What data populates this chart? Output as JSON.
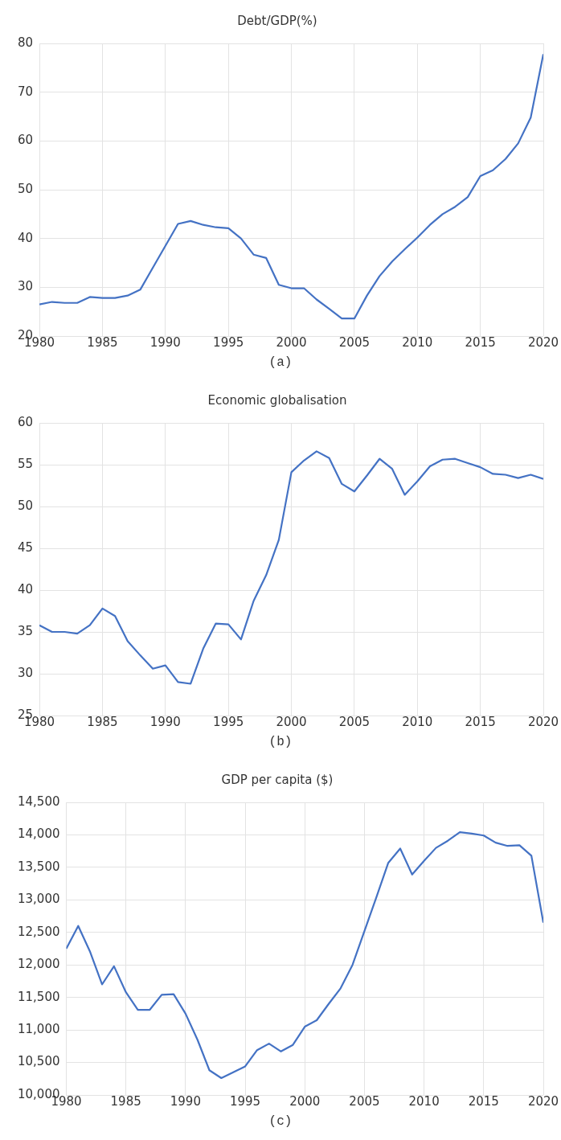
{
  "chart_data": [
    {
      "type": "line",
      "title": "Debt/GDP(%)",
      "annotations": [
        "(a)"
      ],
      "x": [
        1980,
        1981,
        1982,
        1983,
        1984,
        1985,
        1986,
        1987,
        1988,
        1989,
        1990,
        1991,
        1992,
        1993,
        1994,
        1995,
        1996,
        1997,
        1998,
        1999,
        2000,
        2001,
        2002,
        2003,
        2004,
        2005,
        2006,
        2007,
        2008,
        2009,
        2010,
        2011,
        2012,
        2013,
        2014,
        2015,
        2016,
        2017,
        2018,
        2019,
        2020
      ],
      "series": [
        {
          "color": "#4472c4",
          "values": [
            26.5,
            27,
            26.8,
            26.8,
            28,
            27.8,
            27.8,
            28.3,
            29.5,
            34,
            38.5,
            43,
            43.6,
            42.8,
            42.3,
            42.1,
            40,
            36.7,
            36,
            30.5,
            29.8,
            29.8,
            27.5,
            25.6,
            23.6,
            23.6,
            28.3,
            32.3,
            35.3,
            37.8,
            40.2,
            42.8,
            45,
            46.5,
            48.5,
            52.8,
            54,
            56.3,
            59.5,
            64.8,
            77.8
          ]
        }
      ],
      "xlim": [
        1980,
        2020
      ],
      "xticks": [
        1980,
        1985,
        1990,
        1995,
        2000,
        2005,
        2010,
        2015,
        2020
      ],
      "ylim": [
        20,
        80
      ],
      "yticks": [
        20,
        30,
        40,
        50,
        60,
        70,
        80
      ],
      "grid": true,
      "legend": false,
      "marker": "none",
      "line_style": "solid"
    },
    {
      "type": "line",
      "title": "Economic globalisation",
      "annotations": [
        "(b)"
      ],
      "x": [
        1980,
        1981,
        1982,
        1983,
        1984,
        1985,
        1986,
        1987,
        1988,
        1989,
        1990,
        1991,
        1992,
        1993,
        1994,
        1995,
        1996,
        1997,
        1998,
        1999,
        2000,
        2001,
        2002,
        2003,
        2004,
        2005,
        2006,
        2007,
        2008,
        2009,
        2010,
        2011,
        2012,
        2013,
        2014,
        2015,
        2016,
        2017,
        2018,
        2019,
        2020
      ],
      "series": [
        {
          "color": "#4472c4",
          "values": [
            35.8,
            35,
            35,
            34.8,
            35.8,
            37.8,
            36.9,
            33.9,
            32.2,
            30.6,
            31,
            29,
            28.8,
            33,
            36,
            35.9,
            34.1,
            38.7,
            41.8,
            46,
            54.1,
            55.5,
            56.6,
            55.8,
            52.7,
            51.8,
            53.7,
            55.7,
            54.5,
            51.4,
            53,
            54.8,
            55.6,
            55.7,
            55.2,
            54.7,
            53.9,
            53.8,
            53.4,
            53.8,
            53.3
          ]
        }
      ],
      "xlim": [
        1980,
        2020
      ],
      "xticks": [
        1980,
        1985,
        1990,
        1995,
        2000,
        2005,
        2010,
        2015,
        2020
      ],
      "ylim": [
        25,
        60
      ],
      "yticks": [
        25,
        30,
        35,
        40,
        45,
        50,
        55,
        60
      ],
      "grid": true,
      "legend": false,
      "marker": "none",
      "line_style": "solid"
    },
    {
      "type": "line",
      "title": "GDP per capita ($)",
      "annotations": [
        "(c)"
      ],
      "x": [
        1980,
        1981,
        1982,
        1983,
        1984,
        1985,
        1986,
        1987,
        1988,
        1989,
        1990,
        1991,
        1992,
        1993,
        1994,
        1995,
        1996,
        1997,
        1998,
        1999,
        2000,
        2001,
        2002,
        2003,
        2004,
        2005,
        2006,
        2007,
        2008,
        2009,
        2010,
        2011,
        2012,
        2013,
        2014,
        2015,
        2016,
        2017,
        2018,
        2019,
        2020
      ],
      "series": [
        {
          "color": "#4472c4",
          "values": [
            12250,
            12600,
            12200,
            11700,
            11980,
            11580,
            11310,
            11310,
            11540,
            11550,
            11250,
            10850,
            10380,
            10260,
            10350,
            10440,
            10690,
            10790,
            10670,
            10770,
            11050,
            11150,
            11400,
            11640,
            12000,
            12520,
            13040,
            13570,
            13790,
            13390,
            13600,
            13800,
            13910,
            14040,
            14020,
            13990,
            13880,
            13830,
            13840,
            13680,
            12650
          ]
        }
      ],
      "xlim": [
        1980,
        2020
      ],
      "xticks": [
        1980,
        1985,
        1990,
        1995,
        2000,
        2005,
        2010,
        2015,
        2020
      ],
      "ylim": [
        10000,
        14500
      ],
      "yticks": [
        {
          "value": 10000,
          "label": "10,000"
        },
        {
          "value": 10500,
          "label": "10,500"
        },
        {
          "value": 11000,
          "label": "11,000"
        },
        {
          "value": 11500,
          "label": "11,500"
        },
        {
          "value": 12000,
          "label": "12,000"
        },
        {
          "value": 12500,
          "label": "12,500"
        },
        {
          "value": 13000,
          "label": "13,000"
        },
        {
          "value": 13500,
          "label": "13,500"
        },
        {
          "value": 14000,
          "label": "14,000"
        },
        {
          "value": 14500,
          "label": "14,500"
        }
      ],
      "grid": true,
      "legend": false,
      "marker": "none",
      "line_style": "solid"
    }
  ]
}
